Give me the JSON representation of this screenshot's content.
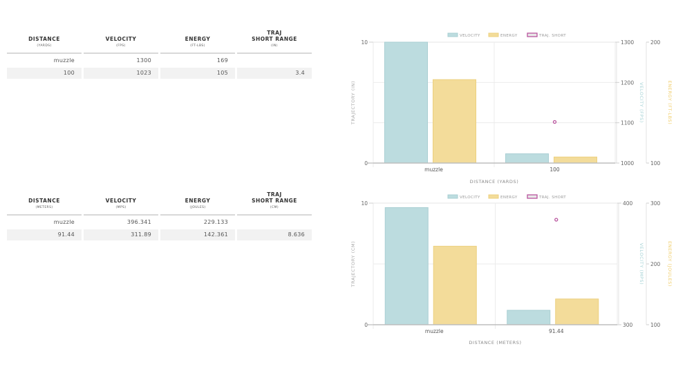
{
  "tables": [
    {
      "columns": [
        {
          "title": "DISTANCE",
          "title2": "",
          "unit": "(YARDS)"
        },
        {
          "title": "VELOCITY",
          "title2": "",
          "unit": "(FPS)"
        },
        {
          "title": "ENERGY",
          "title2": "",
          "unit": "(FT-LBS)"
        },
        {
          "title": "TRAJ",
          "title2": "SHORT RANGE",
          "unit": "(IN)"
        }
      ],
      "rows": [
        [
          "muzzle",
          "1300",
          "169",
          ""
        ],
        [
          "100",
          "1023",
          "105",
          "3.4"
        ]
      ]
    },
    {
      "columns": [
        {
          "title": "DISTANCE",
          "title2": "",
          "unit": "(METERS)"
        },
        {
          "title": "VELOCITY",
          "title2": "",
          "unit": "(MPS)"
        },
        {
          "title": "ENERGY",
          "title2": "",
          "unit": "(JOULES)"
        },
        {
          "title": "TRAJ",
          "title2": "SHORT RANGE",
          "unit": "(CM)"
        }
      ],
      "rows": [
        [
          "muzzle",
          "396.341",
          "229.133",
          ""
        ],
        [
          "91.44",
          "311.89",
          "142.361",
          "8.636"
        ]
      ]
    }
  ],
  "colors": {
    "velocity": "#bcdcdf",
    "velocity_border": "#a9cfd3",
    "energy": "#f3dc9a",
    "energy_border": "#ecd07e",
    "traj": "#b8539d",
    "velocity_label": "#a7d3d6",
    "energy_label": "#f0cd6a"
  },
  "chart_data": [
    {
      "type": "bar",
      "title": "",
      "categories": [
        "muzzle",
        "100"
      ],
      "xlabel": "DISTANCE (YARDS)",
      "legend": [
        "VELOCITY",
        "ENERGY",
        "TRAJ. SHORT"
      ],
      "legend_position": "top-center",
      "grid": true,
      "series": [
        {
          "name": "VELOCITY",
          "type": "bar",
          "axis": "velocity",
          "values": [
            1300,
            1023
          ]
        },
        {
          "name": "ENERGY",
          "type": "bar",
          "axis": "energy",
          "values": [
            169,
            105
          ]
        },
        {
          "name": "TRAJ. SHORT",
          "type": "scatter",
          "axis": "traj",
          "values": [
            null,
            3.4
          ]
        }
      ],
      "axes": {
        "traj": {
          "label": "TRAJECTORY (IN)",
          "range": [
            0,
            10
          ],
          "ticks": [
            0,
            10
          ],
          "position": "left"
        },
        "velocity": {
          "label": "VELOCITY (FPS)",
          "range": [
            1000,
            1300
          ],
          "ticks": [
            1000,
            1100,
            1200,
            1300
          ],
          "position": "right"
        },
        "energy": {
          "label": "ENERGY (FT-LBS)",
          "range": [
            100,
            200
          ],
          "ticks": [
            100,
            200
          ],
          "position": "right-outer"
        }
      },
      "gridlines": [
        1100,
        1200
      ],
      "grid_axis": "velocity"
    },
    {
      "type": "bar",
      "title": "",
      "categories": [
        "muzzle",
        "91.44"
      ],
      "xlabel": "DISTANCE (METERS)",
      "legend": [
        "VELOCITY",
        "ENERGY",
        "TRAJ. SHORT"
      ],
      "legend_position": "top-center",
      "grid": true,
      "series": [
        {
          "name": "VELOCITY",
          "type": "bar",
          "axis": "velocity",
          "values": [
            396.341,
            311.89
          ]
        },
        {
          "name": "ENERGY",
          "type": "bar",
          "axis": "energy",
          "values": [
            229.133,
            142.361
          ]
        },
        {
          "name": "TRAJ. SHORT",
          "type": "scatter",
          "axis": "traj",
          "values": [
            null,
            8.636
          ]
        }
      ],
      "axes": {
        "traj": {
          "label": "TRAJECTORY (CM)",
          "range": [
            0,
            10
          ],
          "ticks": [
            0,
            10
          ],
          "position": "left"
        },
        "velocity": {
          "label": "VELOCITY (MPS)",
          "range": [
            300,
            400
          ],
          "ticks": [
            300,
            400
          ],
          "position": "right"
        },
        "energy": {
          "label": "ENERGY (JOULES)",
          "range": [
            100,
            300
          ],
          "ticks": [
            100,
            200,
            300
          ],
          "position": "right-outer"
        }
      },
      "gridlines": [
        200
      ],
      "grid_axis": "energy"
    }
  ]
}
